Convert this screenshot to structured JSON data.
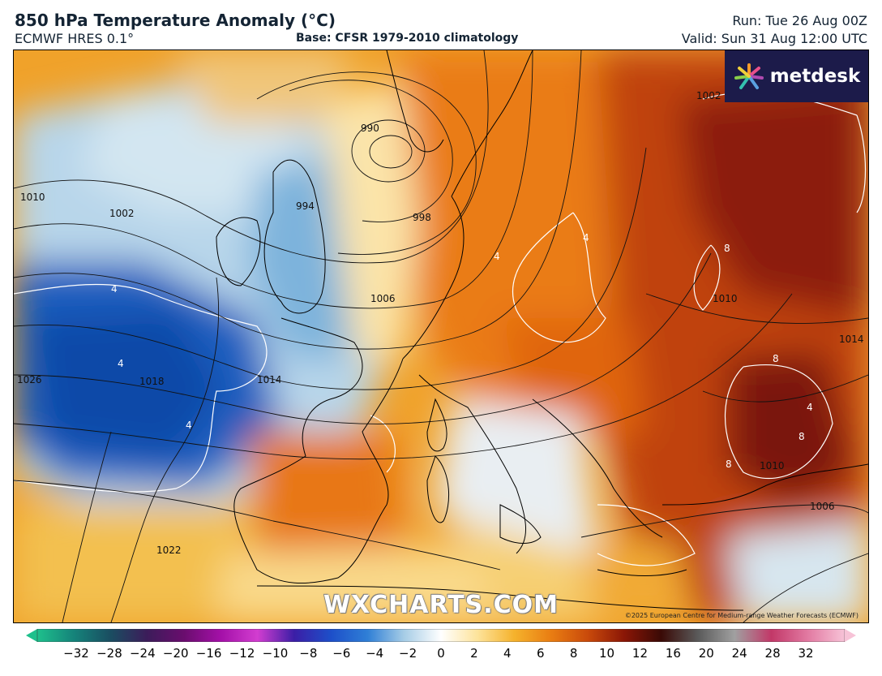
{
  "header": {
    "title": "850 hPa Temperature Anomaly (°C)",
    "model": "ECMWF HRES 0.1°",
    "base": "Base: CFSR 1979-2010 climatology",
    "run": "Run: Tue 26 Aug 00Z",
    "valid": "Valid: Sun 31 Aug 12:00 UTC"
  },
  "logo": {
    "text": "metdesk",
    "icon": "metdesk-flower-icon"
  },
  "watermark": "WXCHARTS.COM",
  "copyright": "©2025 European Centre for Medium-range Weather Forecasts (ECMWF)",
  "isobar_labels": [
    "990",
    "994",
    "998",
    "1002",
    "1002",
    "1006",
    "1010",
    "1010",
    "1014",
    "1014",
    "1018",
    "1022",
    "1026",
    "1010",
    "1006"
  ],
  "anomaly_labels": [
    "4",
    "4",
    "4",
    "4",
    "4",
    "8",
    "8",
    "8",
    "8",
    "4"
  ],
  "colorbar": {
    "ticks": [
      "−32",
      "−28",
      "−24",
      "−20",
      "−16",
      "−12",
      "−10",
      "−8",
      "−6",
      "−4",
      "−2",
      "0",
      "2",
      "4",
      "6",
      "8",
      "10",
      "12",
      "16",
      "20",
      "24",
      "28",
      "32"
    ],
    "colors": [
      "#1ec08c",
      "#15837a",
      "#1a4d61",
      "#3c1c5a",
      "#6a0d6e",
      "#a410a8",
      "#d23dd0",
      "#3b1ea6",
      "#1d4fc9",
      "#2f7fd6",
      "#a7cde6",
      "#ffffff",
      "#fde39a",
      "#f5b22c",
      "#e97d12",
      "#c94a0b",
      "#8a1606",
      "#3a0a06",
      "#5a5a5a",
      "#a0a0a0",
      "#c23868",
      "#e27aa2",
      "#f7c3d7"
    ]
  }
}
